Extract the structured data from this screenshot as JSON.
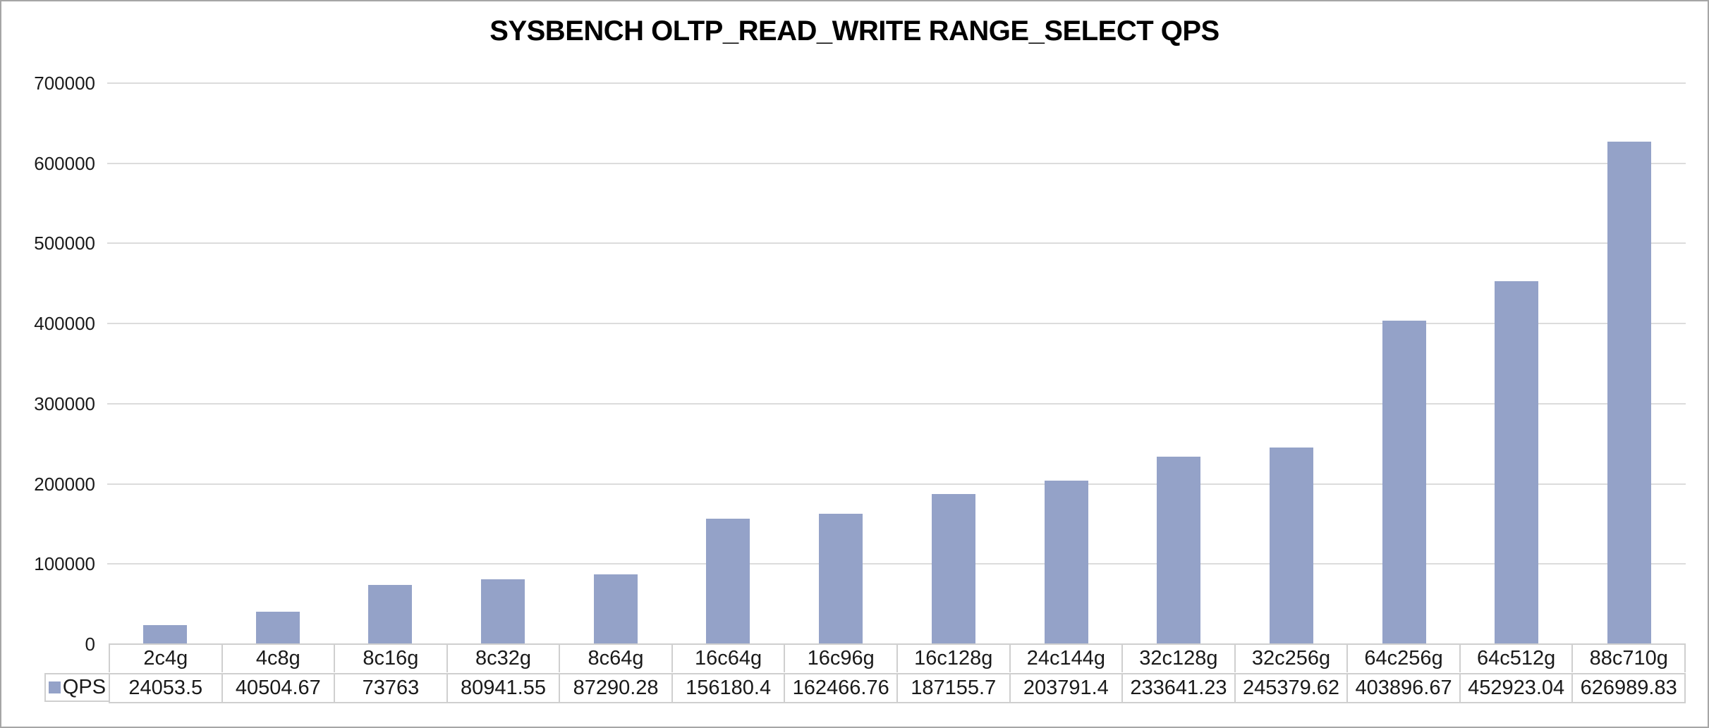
{
  "chart_data": {
    "type": "bar",
    "title": "SYSBENCH OLTP_READ_WRITE RANGE_SELECT QPS",
    "categories": [
      "2c4g",
      "4c8g",
      "8c16g",
      "8c32g",
      "8c64g",
      "16c64g",
      "16c96g",
      "16c128g",
      "24c144g",
      "32c128g",
      "32c256g",
      "64c256g",
      "64c512g",
      "88c710g"
    ],
    "series": [
      {
        "name": "QPS",
        "values": [
          24053.5,
          40504.67,
          73763,
          80941.55,
          87290.28,
          156180.4,
          162466.76,
          187155.7,
          203791.4,
          233641.23,
          245379.62,
          403896.67,
          452923.04,
          626989.83
        ]
      }
    ],
    "xlabel": "",
    "ylabel": "",
    "ylim": [
      0,
      700000
    ],
    "yticks": [
      0,
      100000,
      200000,
      300000,
      400000,
      500000,
      600000,
      700000
    ],
    "grid": true,
    "legend_position": "data-table-left",
    "bar_color": "#94A2C8",
    "gridline_color": "#DCDCDC",
    "table_border_color": "#CFCFCF",
    "outer_border_color": "#A6A6A6",
    "text_color": "#1A1A1A"
  }
}
